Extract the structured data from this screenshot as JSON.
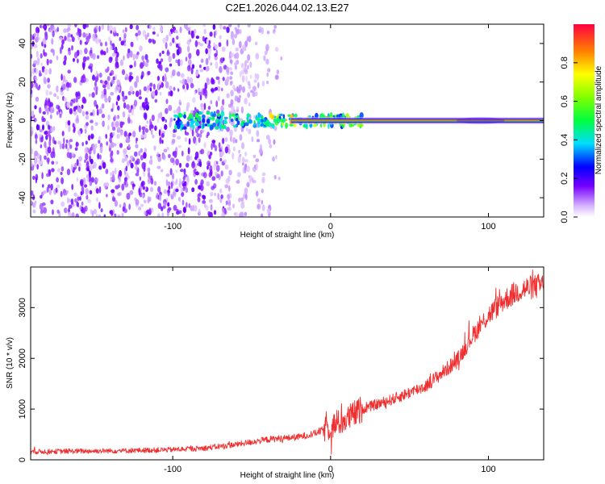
{
  "title": "C2E1.2026.044.02.13.E27",
  "chart_data": [
    {
      "type": "heatmap",
      "xlabel": "Height of straight line (km)",
      "ylabel": "Frequency (Hz)",
      "xlim": [
        -190,
        135
      ],
      "ylim": [
        -50,
        50
      ],
      "xticks": [
        -100,
        0,
        100
      ],
      "yticks": [
        -40,
        -20,
        0,
        20,
        40
      ],
      "colorbar": {
        "label": "Normalized spectral amplitude",
        "range": [
          0,
          1
        ],
        "ticks": [
          0.0,
          0.2,
          0.4,
          0.6,
          0.8
        ],
        "tick_labels": [
          "0.0",
          "0.2",
          "0.4",
          "0.6",
          "0.8"
        ]
      },
      "features": {
        "noise_region_x": [
          -190,
          -30
        ],
        "dense_noise_x": [
          -190,
          -65
        ],
        "carrier_start_x": -100,
        "carrier_freq_hz": 0,
        "strong_carrier_from_x": -25
      }
    },
    {
      "type": "line",
      "xlabel": "Height of straight line (km)",
      "ylabel": "SNR (10 * v/v)",
      "xlim": [
        -190,
        135
      ],
      "ylim": [
        0,
        3800
      ],
      "xticks": [
        -100,
        0,
        100
      ],
      "yticks": [
        0,
        1000,
        2000,
        3000
      ],
      "series": [
        {
          "name": "SNR",
          "color": "#f03030",
          "x": [
            -190,
            -160,
            -130,
            -100,
            -80,
            -60,
            -40,
            -20,
            -10,
            0,
            10,
            20,
            40,
            60,
            80,
            90,
            100,
            110,
            120,
            135
          ],
          "y": [
            160,
            170,
            180,
            200,
            230,
            300,
            400,
            450,
            520,
            650,
            800,
            1000,
            1200,
            1450,
            1950,
            2450,
            2850,
            3150,
            3350,
            3450
          ]
        }
      ]
    }
  ]
}
